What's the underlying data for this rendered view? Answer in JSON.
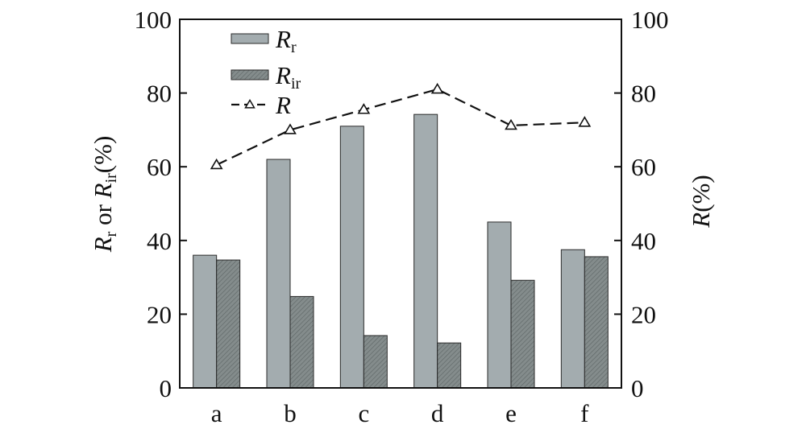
{
  "chart_data": {
    "type": "bar",
    "categories": [
      "a",
      "b",
      "c",
      "d",
      "e",
      "f"
    ],
    "series": [
      {
        "name": "Rr",
        "name_main": "R",
        "name_sub": "r",
        "kind": "bar",
        "axis": "left",
        "color": "#a3acaf",
        "values": [
          36,
          62,
          71,
          74.2,
          45,
          37.5
        ]
      },
      {
        "name": "Rir",
        "name_main": "R",
        "name_sub": "ir",
        "kind": "bar",
        "axis": "left",
        "color": "#7d8686",
        "values": [
          34.7,
          24.8,
          14.2,
          12.2,
          29.2,
          35.6
        ]
      },
      {
        "name": "R",
        "name_main": "R",
        "name_sub": "",
        "kind": "line",
        "axis": "right",
        "color": "#111111",
        "values": [
          60.5,
          70,
          75.5,
          81,
          71.2,
          72
        ]
      }
    ],
    "ylim": [
      0,
      100
    ],
    "y2lim": [
      0,
      100
    ],
    "yticks": [
      "0",
      "20",
      "40",
      "60",
      "80",
      "100"
    ],
    "y2ticks": [
      "0",
      "20",
      "40",
      "60",
      "80",
      "100"
    ],
    "ylabel": {
      "parts": [
        "R",
        "r",
        " or ",
        "R",
        "ir",
        "(%)"
      ]
    },
    "y2label": {
      "parts": [
        "R",
        "(%)"
      ]
    },
    "legend_position": "top-left",
    "grid": false
  }
}
